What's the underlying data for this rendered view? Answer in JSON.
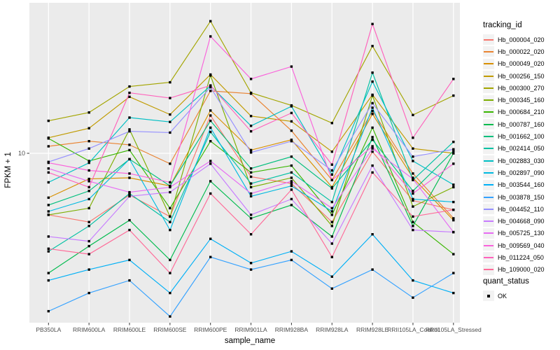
{
  "figure": {
    "y_axis_title": "FPKM + 1",
    "x_axis_title": "sample_name",
    "panel_bg": "#EBEBEB",
    "grid_color": "#FFFFFF",
    "point_color": "#000000",
    "tick_color": "#333333",
    "tick_label_color": "#4D4D4D"
  },
  "legend": {
    "tracking_title": "tracking_id",
    "quant_title": "quant_status",
    "quant_ok_label": "OK"
  },
  "chart_data": {
    "type": "line",
    "title": "",
    "xlabel": "sample_name",
    "ylabel": "FPKM + 1",
    "y_scale": "log10",
    "y_tick": 10,
    "ylim": [
      1.2,
      60
    ],
    "grid": true,
    "legend_position": "right",
    "point_shape": "black-square",
    "categories": [
      "PB350LA",
      "RRIM600LA",
      "RRIM600LE",
      "RRIM600SE",
      "RRIM600PE",
      "RRIM901LA",
      "RRIM928BA",
      "RRIM928LA",
      "RRIM928LE",
      "RRII105LA_Control",
      "RRII105LA_Stressed"
    ],
    "series": [
      {
        "name": "Hb_000004_020",
        "color": "#F8766D",
        "values": [
          4.7,
          4.3,
          6.0,
          4.6,
          15.9,
          7.5,
          6.9,
          4.3,
          10.2,
          5.6,
          5.0
        ]
      },
      {
        "name": "Hb_000022_020",
        "color": "#EA8331",
        "values": [
          10.9,
          11.6,
          11.1,
          8.8,
          21.5,
          20.8,
          13.2,
          7.2,
          16.8,
          7.8,
          4.5
        ]
      },
      {
        "name": "Hb_000049_020",
        "color": "#D89000",
        "values": [
          5.8,
          7.3,
          7.4,
          6.7,
          16.9,
          10.4,
          11.8,
          6.6,
          16.2,
          7.4,
          4.4
        ]
      },
      {
        "name": "Hb_000256_150",
        "color": "#C09B00",
        "values": [
          12.1,
          13.6,
          20.0,
          16.1,
          26.3,
          15.8,
          14.8,
          10.2,
          20.5,
          10.6,
          10.0
        ]
      },
      {
        "name": "Hb_000300_270",
        "color": "#A3A500",
        "values": [
          14.9,
          16.5,
          22.7,
          23.9,
          50.6,
          21.0,
          18.0,
          14.5,
          37.3,
          16.0,
          20.3
        ]
      },
      {
        "name": "Hb_000345_160",
        "color": "#7CAE00",
        "values": [
          4.7,
          5.1,
          13.4,
          4.6,
          26.0,
          6.6,
          7.4,
          4.1,
          20.3,
          5.2,
          6.6
        ]
      },
      {
        "name": "Hb_000684_210",
        "color": "#39B600",
        "values": [
          12.0,
          9.1,
          10.4,
          5.1,
          11.6,
          7.9,
          8.6,
          4.7,
          13.7,
          4.3,
          2.9
        ]
      },
      {
        "name": "Hb_000787_160",
        "color": "#00BB4E",
        "values": [
          2.3,
          3.2,
          4.4,
          2.7,
          7.1,
          4.5,
          5.3,
          3.6,
          12.2,
          4.1,
          10.0
        ]
      },
      {
        "name": "Hb_001662_100",
        "color": "#00BF7D",
        "values": [
          5.3,
          6.3,
          9.3,
          6.7,
          14.9,
          8.3,
          9.6,
          6.5,
          11.8,
          6.3,
          10.3
        ]
      },
      {
        "name": "Hb_002414_050",
        "color": "#00C1A3",
        "values": [
          3.0,
          4.1,
          6.1,
          4.3,
          13.0,
          6.9,
          7.9,
          5.5,
          26.9,
          7.2,
          11.5
        ]
      },
      {
        "name": "Hb_002883_030",
        "color": "#00BFC4",
        "values": [
          7.0,
          8.9,
          15.5,
          14.7,
          22.9,
          14.0,
          17.8,
          7.7,
          24.1,
          9.1,
          6.8
        ]
      },
      {
        "name": "Hb_002897_090",
        "color": "#00BAE0",
        "values": [
          4.9,
          5.7,
          9.3,
          3.9,
          13.7,
          5.9,
          6.7,
          4.9,
          17.5,
          5.7,
          5.5
        ]
      },
      {
        "name": "Hb_003544_160",
        "color": "#00B0F6",
        "values": [
          2.1,
          2.4,
          2.7,
          1.8,
          3.5,
          2.6,
          3.0,
          2.2,
          3.7,
          2.1,
          1.8
        ]
      },
      {
        "name": "Hb_003878_150",
        "color": "#35A2FF",
        "values": [
          1.44,
          1.8,
          2.1,
          1.35,
          2.8,
          2.4,
          2.7,
          1.9,
          2.4,
          1.7,
          2.3
        ]
      },
      {
        "name": "Hb_004452_110",
        "color": "#9590FF",
        "values": [
          9.0,
          10.6,
          13.1,
          12.9,
          22.5,
          10.1,
          11.6,
          8.1,
          18.5,
          9.6,
          10.5
        ]
      },
      {
        "name": "Hb_004668_090",
        "color": "#C77CFF",
        "values": [
          3.6,
          3.4,
          5.9,
          6.2,
          8.8,
          4.7,
          5.7,
          3.3,
          8.6,
          3.9,
          3.8
        ]
      },
      {
        "name": "Hb_005725_130",
        "color": "#E76BF3",
        "values": [
          8.3,
          7.1,
          6.2,
          6.6,
          9.1,
          6.1,
          7.1,
          5.1,
          10.6,
          7.3,
          3.8
        ]
      },
      {
        "name": "Hb_009569_040",
        "color": "#FA62DB",
        "values": [
          8.9,
          8.1,
          7.8,
          7.0,
          42.0,
          24.9,
          29.0,
          7.2,
          10.9,
          6.1,
          8.8
        ]
      },
      {
        "name": "Hb_011224_050",
        "color": "#FF62BC",
        "values": [
          7.9,
          6.6,
          21.0,
          19.7,
          23.0,
          13.1,
          16.4,
          8.7,
          48.9,
          12.1,
          24.9
        ]
      },
      {
        "name": "Hb_109000_020",
        "color": "#FF6A98",
        "values": [
          3.1,
          2.9,
          3.9,
          2.3,
          6.1,
          3.7,
          6.4,
          2.8,
          7.9,
          4.6,
          5.0
        ]
      }
    ],
    "quant_status_values": [
      "OK"
    ]
  }
}
